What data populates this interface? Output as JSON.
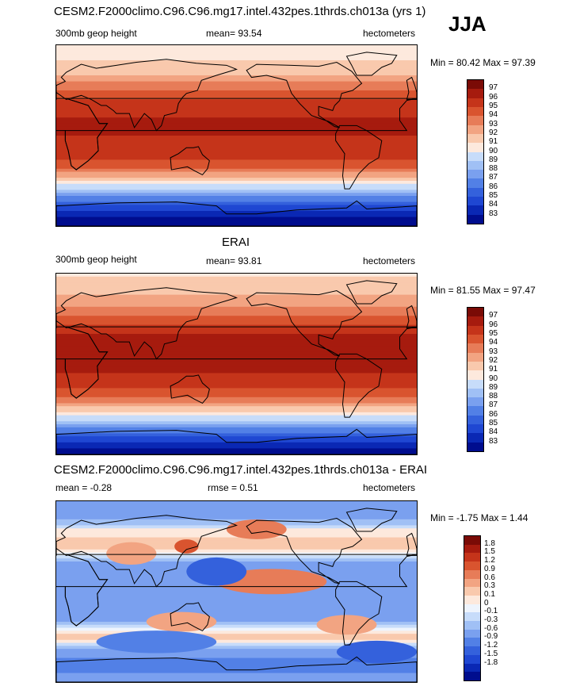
{
  "season": "JJA",
  "palette": {
    "abs": [
      "#000d8e",
      "#0a28b4",
      "#1f47d2",
      "#3461dc",
      "#5280e6",
      "#7aa0ef",
      "#a0c0f5",
      "#c7dcfa",
      "#fde9dd",
      "#f9c9ad",
      "#f2a482",
      "#e77c58",
      "#d9542f",
      "#c5341a",
      "#a61b0e",
      "#7a0b06"
    ],
    "diff": [
      "#000d8e",
      "#0a28b4",
      "#1f47d2",
      "#3461dc",
      "#5280e6",
      "#7aa0ef",
      "#a0c0f5",
      "#c7dcfa",
      "#eef4fd",
      "#fde9dd",
      "#f9c9ad",
      "#f2a482",
      "#e77c58",
      "#d9542f",
      "#c5341a",
      "#a61b0e",
      "#7a0b06"
    ]
  },
  "panels": [
    {
      "title": "CESM2.F2000climo.C96.C96.mg17.intel.432pes.1thrds.ch013a (yrs 1)",
      "left_label": "300mb geop height",
      "center_label": "mean=  93.54",
      "units": "hectometers",
      "minmax": "Min =  80.42 Max =  97.39"
    },
    {
      "title": "ERAI",
      "left_label": "300mb geop height",
      "center_label": "mean=  93.81",
      "units": "hectometers",
      "minmax": "Min =  81.55 Max =  97.47"
    },
    {
      "title": "CESM2.F2000climo.C96.C96.mg17.intel.432pes.1thrds.ch013a - ERAI",
      "left_label": "mean =  -0.28",
      "center_label": "rmse =   0.51",
      "units": "hectometers",
      "minmax": "Min =  -1.75 Max =   1.44"
    }
  ],
  "chart_data": [
    {
      "type": "heatmap",
      "title": "CESM2.F2000climo.C96.C96.mg17.intel.432pes.1thrds.ch013a (yrs 1)",
      "variable": "300mb geop height",
      "units": "hectometers",
      "mean": 93.54,
      "min": 80.42,
      "max": 97.39,
      "colorbar_levels": [
        "97",
        "96",
        "95",
        "94",
        "93",
        "92",
        "91",
        "90",
        "89",
        "88",
        "87",
        "86",
        "85",
        "84",
        "83"
      ],
      "zonal_profile": {
        "lat": [
          90,
          75,
          60,
          45,
          30,
          15,
          0,
          -15,
          -30,
          -45,
          -60,
          -75,
          -90
        ],
        "value": [
          90.5,
          91,
          92,
          94,
          95.5,
          96.2,
          96,
          95.8,
          94.5,
          91,
          87,
          84,
          81
        ]
      }
    },
    {
      "type": "heatmap",
      "title": "ERAI",
      "variable": "300mb geop height",
      "units": "hectometers",
      "mean": 93.81,
      "min": 81.55,
      "max": 97.47,
      "colorbar_levels": [
        "97",
        "96",
        "95",
        "94",
        "93",
        "92",
        "91",
        "90",
        "89",
        "88",
        "87",
        "86",
        "85",
        "84",
        "83"
      ],
      "zonal_profile": {
        "lat": [
          90,
          75,
          60,
          45,
          30,
          15,
          0,
          -15,
          -30,
          -45,
          -60,
          -75,
          -90
        ],
        "value": [
          90.8,
          91.5,
          92.5,
          94.5,
          96,
          96.5,
          96.2,
          95.8,
          94.5,
          91.5,
          88,
          84.5,
          82
        ]
      }
    },
    {
      "type": "heatmap",
      "title": "CESM2.F2000climo.C96.C96.mg17.intel.432pes.1thrds.ch013a - ERAI",
      "units": "hectometers",
      "mean": -0.28,
      "rmse": 0.51,
      "min": -1.75,
      "max": 1.44,
      "colorbar_levels": [
        "1.8",
        "1.5",
        "1.2",
        "0.9",
        "0.6",
        "0.3",
        "0.1",
        "0",
        "-0.1",
        "-0.3",
        "-0.6",
        "-0.9",
        "-1.2",
        "-1.5",
        "-1.8"
      ],
      "zonal_profile": {
        "lat": [
          90,
          75,
          60,
          45,
          30,
          15,
          0,
          -15,
          -30,
          -45,
          -60,
          -75,
          -90
        ],
        "value": [
          -0.3,
          -0.5,
          0.2,
          0.5,
          -0.3,
          -0.5,
          -0.5,
          -0.4,
          -0.3,
          0.4,
          -0.5,
          -0.8,
          -0.3
        ]
      }
    }
  ]
}
